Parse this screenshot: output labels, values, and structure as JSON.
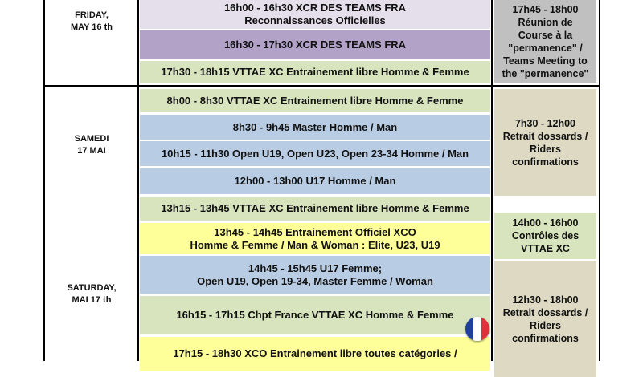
{
  "colors": {
    "lavender": "#e5dfec",
    "purple": "#b2a2c7",
    "green": "#d7e4bd",
    "blue": "#b8cce4",
    "yellow": "#ffff99",
    "gray": "#c0c0c0",
    "tan": "#ddd9c3"
  },
  "days": {
    "friday": [
      "FRIDAY,",
      "MAY 16 th"
    ],
    "samedi": [
      "SAMEDI",
      "17 MAI"
    ],
    "saturday": [
      "SATURDAY,",
      "MAI 17 th"
    ]
  },
  "friday_events": [
    [
      "16h00 - 16h30 XCR DES TEAMS FRA",
      "Reconnaissances Officielles"
    ],
    [
      "16h30 - 17h30  XCR DES TEAMS FRA"
    ],
    [
      "17h30 - 18h15  VTTAE XC Entrainement libre Homme & Femme"
    ]
  ],
  "friday_side": [
    "17h45 - 18h00",
    "Réunion de",
    "Course à la",
    "\"permanence\" /",
    "Teams Meeting to",
    "the \"permanence\""
  ],
  "saturday_events": [
    [
      "8h00 - 8h30  VTTAE XC Entrainement libre Homme & Femme"
    ],
    [
      "8h30 - 9h45   Master Homme / Man"
    ],
    [
      "10h15 - 11h30  Open U19, Open U23, Open 23-34 Homme / Man"
    ],
    [
      "12h00 - 13h00 U17 Homme / Man"
    ],
    [
      "13h15 - 13h45 VTTAE XC Entrainement libre Homme & Femme"
    ],
    [
      "13h45 - 14h45  Entrainement Officiel XCO",
      "Homme & Femme / Man & Woman : Elite, U23, U19"
    ],
    [
      "14h45 - 15h45  U17 Femme;",
      "Open U19, Open 19-34, Master Femme / Woman"
    ],
    [
      "16h15 - 17h15 Chpt France VTTAE XC Homme & Femme"
    ],
    [
      "17h15 - 18h30  XCO Entrainement libre toutes catégories /"
    ]
  ],
  "saturday_side": [
    [
      "7h30 - 12h00",
      "Retrait dossards /",
      "Riders",
      "confirmations"
    ],
    [
      "14h00 - 16h00",
      "Contrôles des",
      "VTTAE XC"
    ],
    [
      "12h30 - 18h00",
      "Retrait dossards /",
      "Riders",
      "confirmations"
    ]
  ],
  "icons": {
    "flag": "france-flag-icon"
  }
}
